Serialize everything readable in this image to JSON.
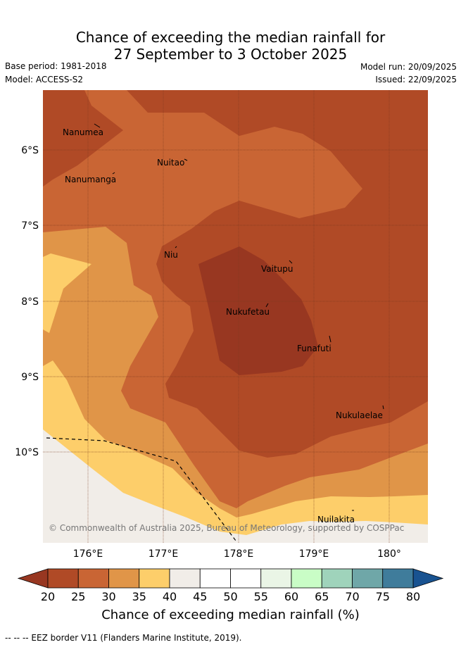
{
  "title_line1": "Chance of exceeding the median rainfall for",
  "title_line2": "27 September to 3 October 2025",
  "base_period": "Base period: 1981-2018",
  "model": "Model: ACCESS-S2",
  "model_run": "Model run: 20/09/2025",
  "issued": "Issued: 22/09/2025",
  "lat_labels": [
    "6°S",
    "7°S",
    "8°S",
    "9°S",
    "10°S"
  ],
  "lon_labels": [
    "176°E",
    "177°E",
    "178°E",
    "179°E",
    "180°"
  ],
  "places": [
    "Nanumea",
    "Nuitao",
    "Nanumanga",
    "Niu",
    "Vaitupu",
    "Nukufetau",
    "Funafuti",
    "Nukulaelae",
    "Nuilakita"
  ],
  "copyright": "© Commonwealth of Australia 2025, Bureau of Meteorology, supported by COSPPac",
  "colorbar": {
    "ticks": [
      "20",
      "25",
      "30",
      "35",
      "40",
      "45",
      "50",
      "55",
      "60",
      "65",
      "70",
      "75",
      "80"
    ],
    "colors": [
      "#b04a26",
      "#c96534",
      "#e09548",
      "#fdce6a",
      "#f1ede8",
      "#ffffff",
      "#ffffff",
      "#eaf5e6",
      "#c9fdc6",
      "#9fd3bb",
      "#6fa7a8",
      "#3f7c9b"
    ],
    "low_color": "#983721",
    "high_color": "#195391",
    "label": "Chance of exceeding median rainfall (%)"
  },
  "footnote": "-- -- -- EEZ border V11 (Flanders Marine Institute, 2019)."
}
